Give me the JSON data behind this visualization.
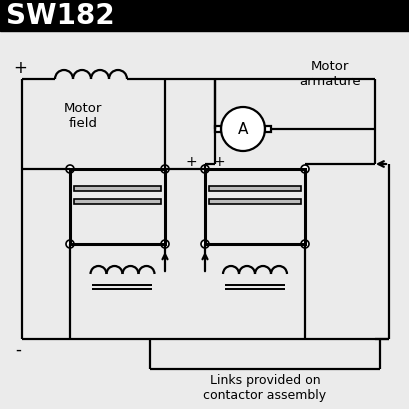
{
  "title": "SW182",
  "title_bg": "#000000",
  "title_color": "#ffffff",
  "title_fontsize": 20,
  "bg_color": "#ffffff",
  "line_color": "#000000",
  "label_motor_field": "Motor\nfield",
  "label_motor_armature": "Motor\narmature",
  "label_links": "Links provided on\ncontactor assembly",
  "label_plus_left": "+",
  "label_plus_mid1": "+",
  "label_plus_mid2": "+",
  "label_minus": "-",
  "label_A": "A",
  "title_bar_height": 32,
  "diagram_bg": "#f0f0f0"
}
